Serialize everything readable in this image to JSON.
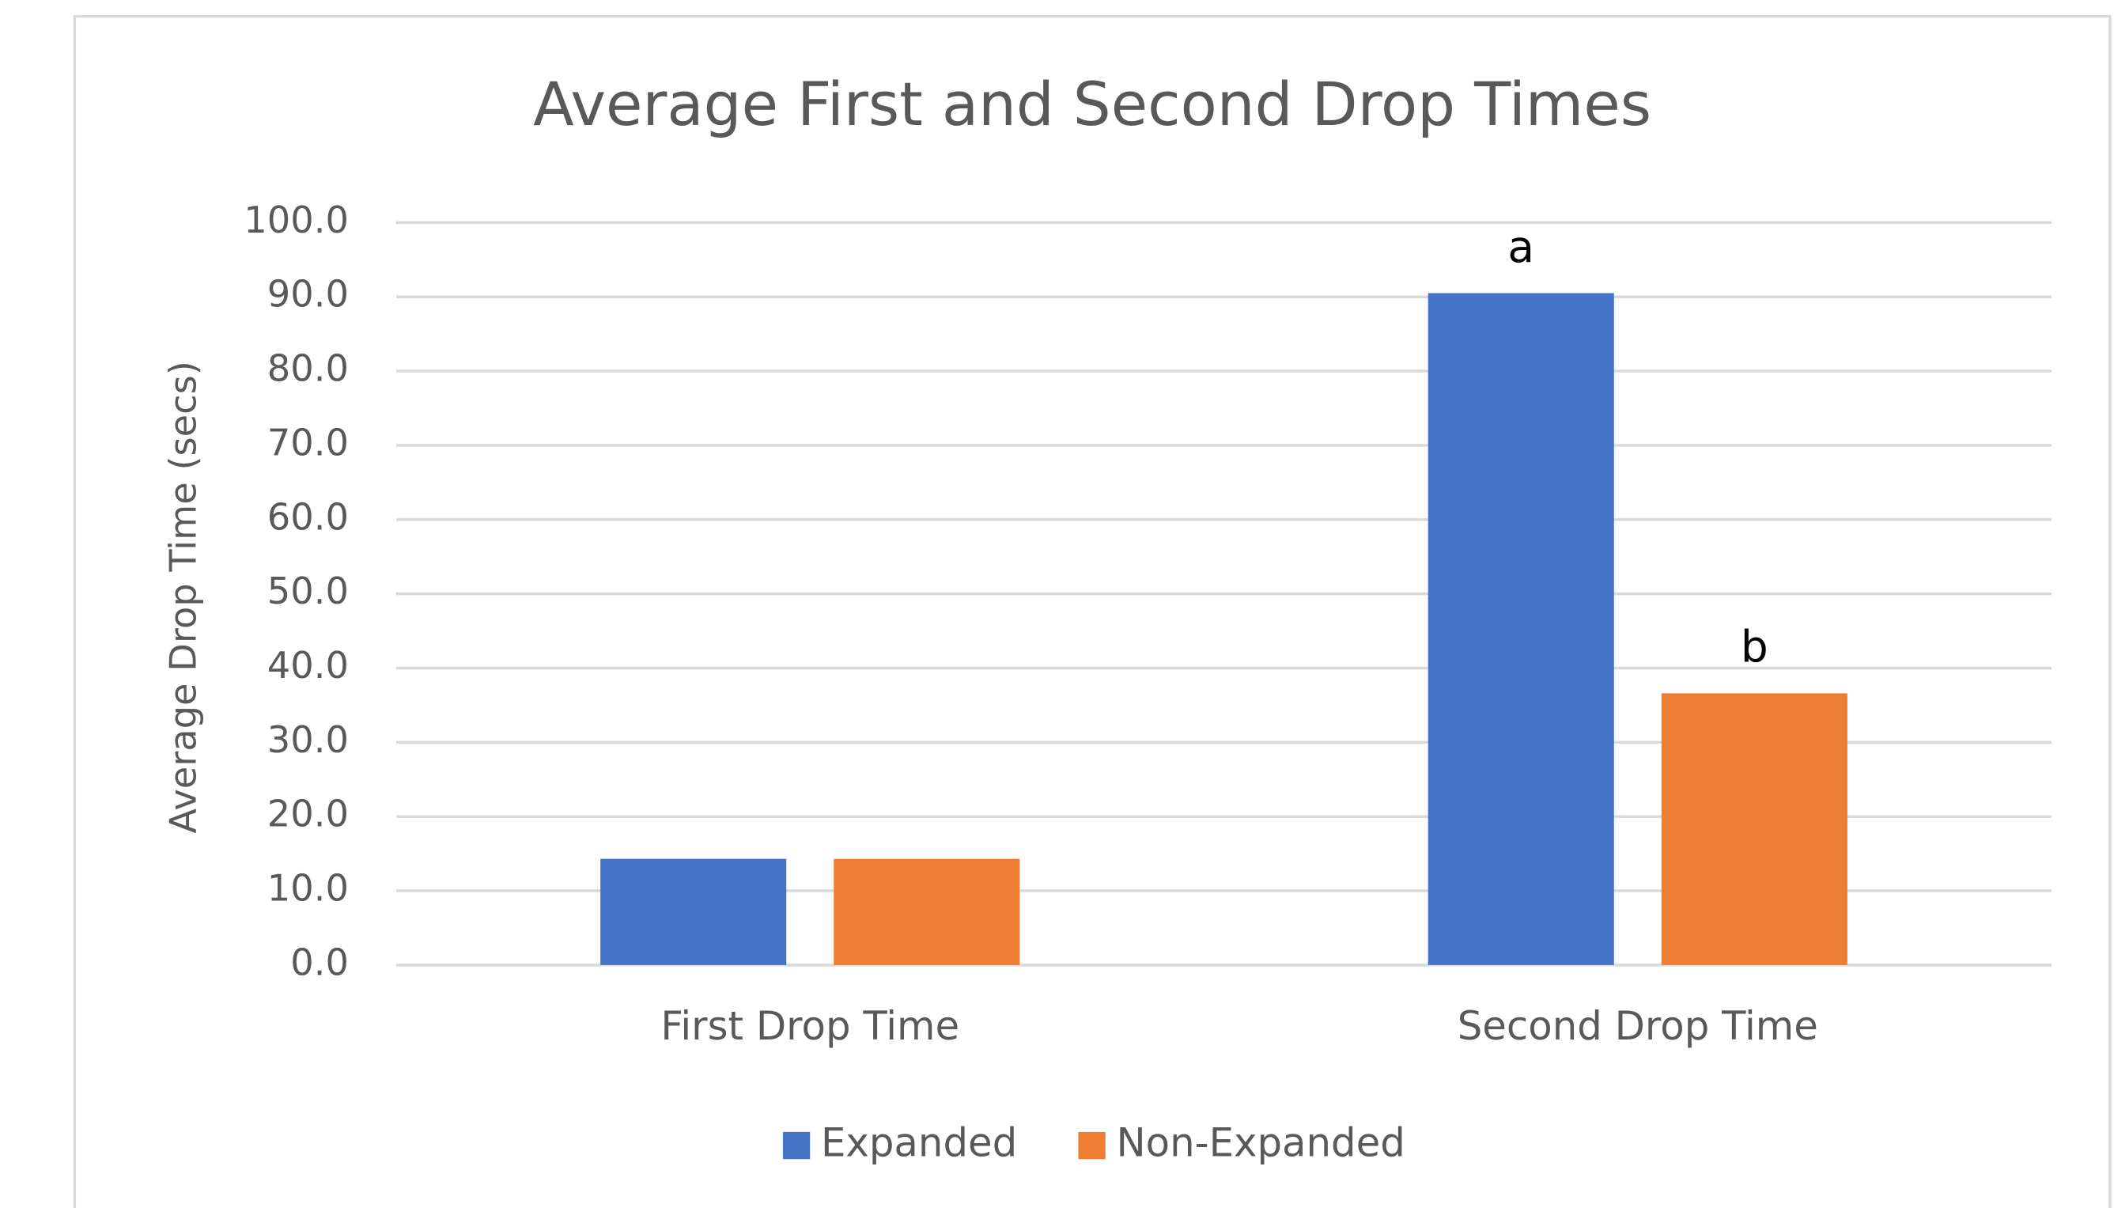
{
  "chart_data": {
    "type": "bar",
    "title": "Average First and Second Drop Times",
    "y_label": "Average Drop Time (secs)",
    "categories": [
      "First Drop Time",
      "Second Drop Time"
    ],
    "series": [
      {
        "name": "Expanded",
        "color": "#4472c4",
        "values": [
          14.3,
          90.5
        ]
      },
      {
        "name": "Non-Expanded",
        "color": "#ed7d31",
        "values": [
          14.3,
          36.6
        ]
      }
    ],
    "annotations": [
      "a",
      "b"
    ],
    "ylim": [
      0,
      100
    ],
    "yticks": [
      {
        "value": 0,
        "label": "0.0"
      },
      {
        "value": 10,
        "label": "10.0"
      },
      {
        "value": 20,
        "label": "20.0"
      },
      {
        "value": 30,
        "label": "30.0"
      },
      {
        "value": 40,
        "label": "40.0"
      },
      {
        "value": 50,
        "label": "50.0"
      },
      {
        "value": 60,
        "label": "60.0"
      },
      {
        "value": 70,
        "label": "70.0"
      },
      {
        "value": 80,
        "label": "80.0"
      },
      {
        "value": 90,
        "label": "90.0"
      },
      {
        "value": 100,
        "label": "100.0"
      }
    ],
    "grid": true,
    "legend": "bottom"
  }
}
